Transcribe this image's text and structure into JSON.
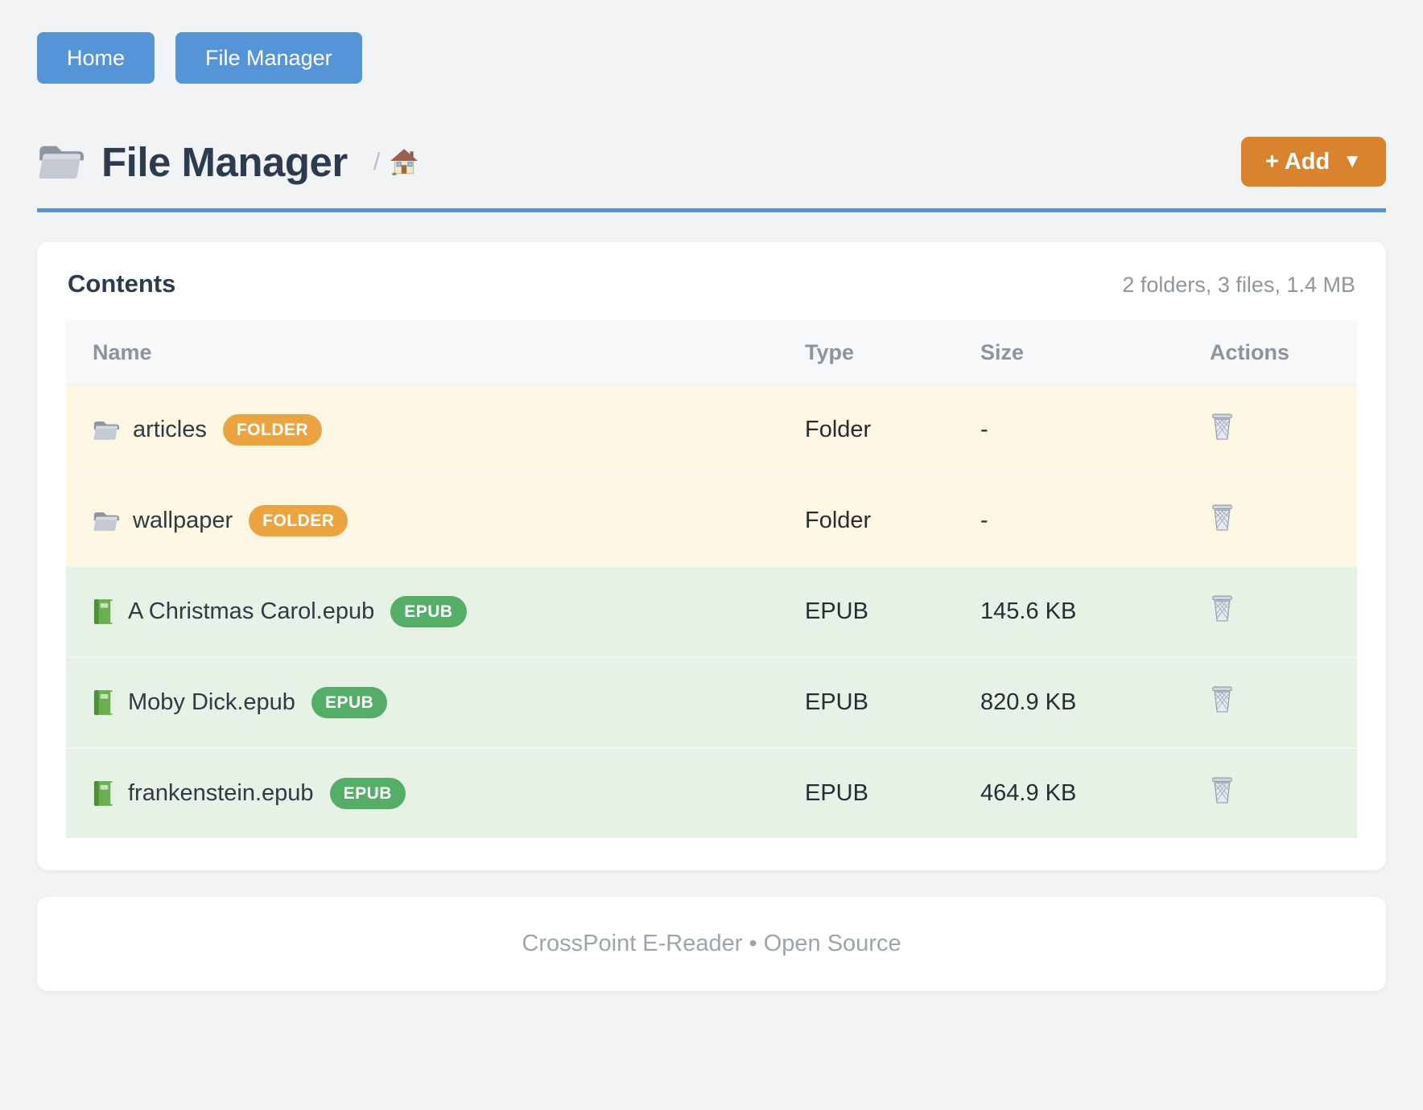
{
  "nav": {
    "home_label": "Home",
    "file_manager_label": "File Manager"
  },
  "header": {
    "title": "File Manager",
    "breadcrumb_separator": "/",
    "add_button_label": "+ Add",
    "add_button_caret": "▼"
  },
  "contents": {
    "heading": "Contents",
    "summary": "2 folders, 3 files, 1.4 MB",
    "columns": [
      "Name",
      "Type",
      "Size",
      "Actions"
    ],
    "rows": [
      {
        "name": "articles",
        "badge": "FOLDER",
        "type": "Folder",
        "size": "-",
        "kind": "folder",
        "icon": "folder-icon"
      },
      {
        "name": "wallpaper",
        "badge": "FOLDER",
        "type": "Folder",
        "size": "-",
        "kind": "folder",
        "icon": "folder-icon"
      },
      {
        "name": "A Christmas Carol.epub",
        "badge": "EPUB",
        "type": "EPUB",
        "size": "145.6 KB",
        "kind": "epub",
        "icon": "book-icon"
      },
      {
        "name": "Moby Dick.epub",
        "badge": "EPUB",
        "type": "EPUB",
        "size": "820.9 KB",
        "kind": "epub",
        "icon": "book-icon"
      },
      {
        "name": "frankenstein.epub",
        "badge": "EPUB",
        "type": "EPUB",
        "size": "464.9 KB",
        "kind": "epub",
        "icon": "book-icon"
      }
    ]
  },
  "footer": {
    "text": "CrossPoint E-Reader • Open Source"
  },
  "icons": {
    "title_icon": "folder-icon",
    "breadcrumb_icon": "house-icon",
    "row_action_icon": "trash-icon"
  },
  "colors": {
    "accent_blue": "#5594d6",
    "accent_orange": "#d9832f",
    "badge_folder": "#eba440",
    "badge_epub": "#55ae68",
    "row_folder_bg": "#fdf6e2",
    "row_epub_bg": "#e7f2e7",
    "heading_text": "#2c3c4e",
    "muted_text": "#8d979c",
    "page_bg": "#f2f3f5"
  }
}
